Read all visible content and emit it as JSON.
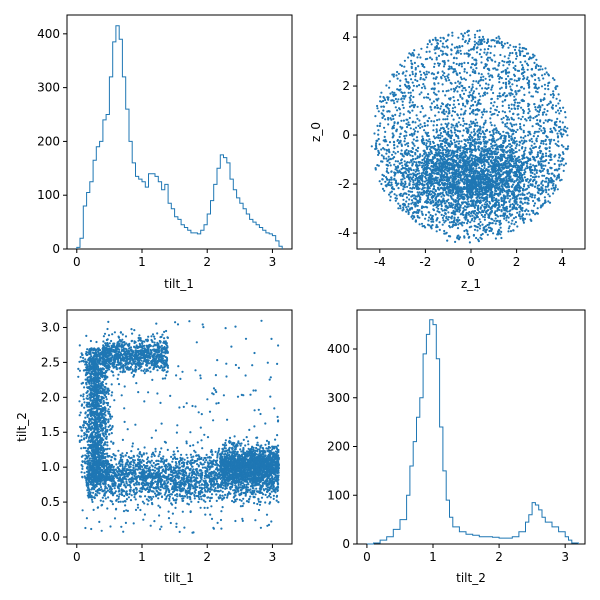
{
  "chart_data": [
    {
      "type": "step-histogram",
      "xlabel": "tilt_1",
      "ylabel": "",
      "xlim": [
        -0.15,
        3.3
      ],
      "ylim": [
        0,
        435
      ],
      "xticks": [
        0,
        1,
        2,
        3
      ],
      "yticks": [
        0,
        100,
        200,
        300,
        400
      ],
      "color": "#1f77b4",
      "points": [
        [
          0.0,
          3
        ],
        [
          0.05,
          20
        ],
        [
          0.1,
          80
        ],
        [
          0.15,
          105
        ],
        [
          0.2,
          125
        ],
        [
          0.25,
          165
        ],
        [
          0.3,
          190
        ],
        [
          0.35,
          200
        ],
        [
          0.4,
          240
        ],
        [
          0.45,
          250
        ],
        [
          0.5,
          320
        ],
        [
          0.55,
          385
        ],
        [
          0.6,
          415
        ],
        [
          0.65,
          390
        ],
        [
          0.7,
          320
        ],
        [
          0.75,
          260
        ],
        [
          0.8,
          200
        ],
        [
          0.85,
          160
        ],
        [
          0.9,
          135
        ],
        [
          0.95,
          130
        ],
        [
          1.0,
          125
        ],
        [
          1.05,
          115
        ],
        [
          1.1,
          140
        ],
        [
          1.15,
          140
        ],
        [
          1.2,
          135
        ],
        [
          1.25,
          125
        ],
        [
          1.3,
          110
        ],
        [
          1.35,
          120
        ],
        [
          1.4,
          85
        ],
        [
          1.45,
          75
        ],
        [
          1.5,
          60
        ],
        [
          1.55,
          55
        ],
        [
          1.6,
          45
        ],
        [
          1.65,
          40
        ],
        [
          1.7,
          35
        ],
        [
          1.75,
          30
        ],
        [
          1.8,
          30
        ],
        [
          1.85,
          28
        ],
        [
          1.9,
          35
        ],
        [
          1.95,
          45
        ],
        [
          2.0,
          65
        ],
        [
          2.05,
          90
        ],
        [
          2.1,
          120
        ],
        [
          2.15,
          150
        ],
        [
          2.2,
          175
        ],
        [
          2.25,
          170
        ],
        [
          2.3,
          160
        ],
        [
          2.35,
          130
        ],
        [
          2.4,
          110
        ],
        [
          2.45,
          95
        ],
        [
          2.5,
          85
        ],
        [
          2.55,
          75
        ],
        [
          2.6,
          65
        ],
        [
          2.65,
          55
        ],
        [
          2.7,
          50
        ],
        [
          2.75,
          45
        ],
        [
          2.8,
          40
        ],
        [
          2.85,
          35
        ],
        [
          2.9,
          30
        ],
        [
          2.95,
          28
        ],
        [
          3.0,
          25
        ],
        [
          3.05,
          15
        ],
        [
          3.1,
          5
        ]
      ]
    },
    {
      "type": "scatter",
      "xlabel": "z_1",
      "ylabel": "z_0",
      "xlim": [
        -5,
        5
      ],
      "ylim": [
        -4.65,
        4.9
      ],
      "xticks": [
        -4,
        -2,
        0,
        2,
        4
      ],
      "yticks": [
        -4,
        -2,
        0,
        2,
        4
      ],
      "color": "#1f77b4",
      "description_points": "approx. 10000 points filling a disc of radius ~4.4 centred at (0,0), densest around z_0 ≈ -1.8"
    },
    {
      "type": "scatter",
      "xlabel": "tilt_1",
      "ylabel": "tilt_2",
      "xlim": [
        -0.15,
        3.3
      ],
      "ylim": [
        -0.1,
        3.25
      ],
      "xticks": [
        0,
        1,
        2,
        3
      ],
      "yticks": [
        0.0,
        0.5,
        1.0,
        1.5,
        2.0,
        2.5,
        3.0
      ],
      "color": "#1f77b4",
      "description_points": "C-shaped point cloud: vertical band near tilt_1≈0.3, top arm near tilt_2≈2.6, bottom band near tilt_2≈0.8-1.0"
    },
    {
      "type": "step-histogram",
      "xlabel": "tilt_2",
      "ylabel": "",
      "xlim": [
        -0.15,
        3.3
      ],
      "ylim": [
        0,
        480
      ],
      "xticks": [
        0,
        1,
        2,
        3
      ],
      "yticks": [
        0,
        100,
        200,
        300,
        400
      ],
      "color": "#1f77b4",
      "points": [
        [
          0.0,
          0
        ],
        [
          0.1,
          2
        ],
        [
          0.2,
          8
        ],
        [
          0.3,
          15
        ],
        [
          0.4,
          30
        ],
        [
          0.5,
          50
        ],
        [
          0.6,
          100
        ],
        [
          0.65,
          160
        ],
        [
          0.7,
          210
        ],
        [
          0.75,
          260
        ],
        [
          0.8,
          300
        ],
        [
          0.85,
          390
        ],
        [
          0.9,
          430
        ],
        [
          0.95,
          460
        ],
        [
          1.0,
          450
        ],
        [
          1.05,
          380
        ],
        [
          1.1,
          240
        ],
        [
          1.15,
          150
        ],
        [
          1.2,
          90
        ],
        [
          1.25,
          55
        ],
        [
          1.3,
          35
        ],
        [
          1.4,
          25
        ],
        [
          1.5,
          20
        ],
        [
          1.6,
          18
        ],
        [
          1.7,
          15
        ],
        [
          1.8,
          15
        ],
        [
          1.9,
          14
        ],
        [
          2.0,
          12
        ],
        [
          2.1,
          12
        ],
        [
          2.2,
          15
        ],
        [
          2.3,
          25
        ],
        [
          2.4,
          45
        ],
        [
          2.45,
          60
        ],
        [
          2.5,
          85
        ],
        [
          2.55,
          80
        ],
        [
          2.6,
          70
        ],
        [
          2.65,
          55
        ],
        [
          2.7,
          45
        ],
        [
          2.8,
          35
        ],
        [
          2.9,
          25
        ],
        [
          3.0,
          15
        ],
        [
          3.05,
          8
        ],
        [
          3.1,
          2
        ]
      ]
    }
  ]
}
